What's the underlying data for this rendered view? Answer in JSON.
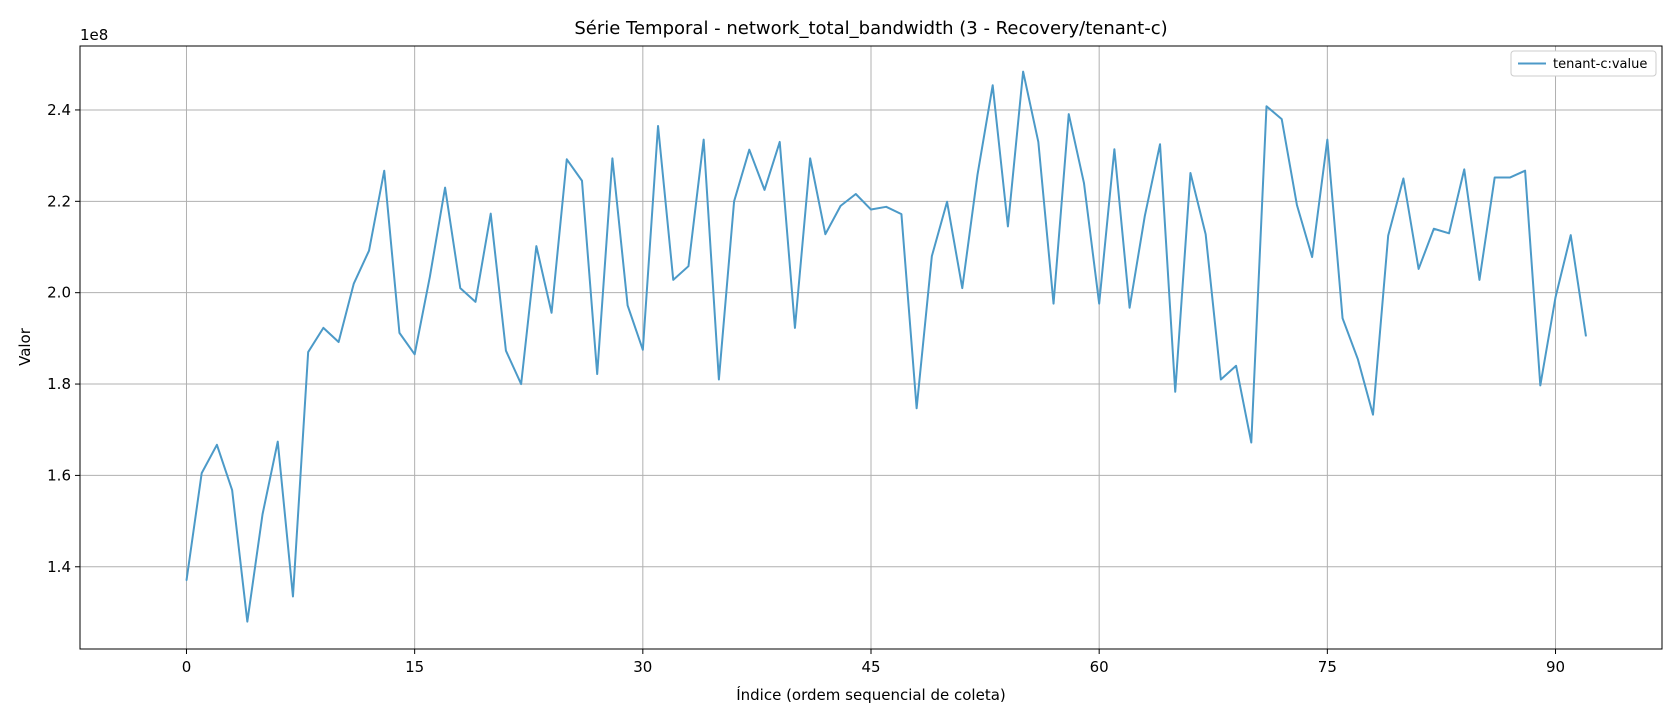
{
  "chart_data": {
    "type": "line",
    "title": "Série Temporal - network_total_bandwidth (3 - Recovery/tenant-c)",
    "xlabel": "Índice (ordem sequencial de coleta)",
    "ylabel": "Valor",
    "y_multiplier_label": "1e8",
    "xlim": [
      -7,
      97
    ],
    "ylim": [
      122000000,
      254000000
    ],
    "x_ticks": [
      0,
      15,
      30,
      45,
      60,
      75,
      90
    ],
    "x_tick_labels": [
      "0",
      "15",
      "30",
      "45",
      "60",
      "75",
      "90"
    ],
    "y_ticks": [
      140000000,
      160000000,
      180000000,
      200000000,
      220000000,
      240000000
    ],
    "y_tick_labels": [
      "1.4",
      "1.6",
      "1.8",
      "2.0",
      "2.2",
      "2.4"
    ],
    "grid": true,
    "legend_position": "top-right",
    "series": [
      {
        "name": "tenant-c:value",
        "color": "#4c9ac8",
        "x": [
          0,
          1,
          2,
          3,
          4,
          5,
          6,
          7,
          8,
          9,
          10,
          11,
          12,
          13,
          14,
          15,
          16,
          17,
          18,
          19,
          20,
          21,
          22,
          23,
          24,
          25,
          26,
          27,
          28,
          29,
          30,
          31,
          32,
          33,
          34,
          35,
          36,
          37,
          38,
          39,
          40,
          41,
          42,
          43,
          44,
          45,
          46,
          47,
          48,
          49,
          50,
          51,
          52,
          53,
          54,
          55,
          56,
          57,
          58,
          59,
          60,
          61,
          62,
          63,
          64,
          65,
          66,
          67,
          68,
          69,
          70,
          71,
          72,
          73,
          74,
          75,
          76,
          77,
          78,
          79,
          80,
          81,
          82,
          83,
          84,
          85,
          86,
          87,
          88,
          89,
          90,
          91,
          92
        ],
        "values": [
          137000000,
          160500000,
          166700000,
          156800000,
          128000000,
          151500000,
          167400000,
          133500000,
          187000000,
          192300000,
          189200000,
          202000000,
          209200000,
          226700000,
          191200000,
          186500000,
          203500000,
          223000000,
          201000000,
          198000000,
          217300000,
          187300000,
          180000000,
          210200000,
          195600000,
          229200000,
          224500000,
          182200000,
          229400000,
          197200000,
          187500000,
          236500000,
          202800000,
          205800000,
          233500000,
          181000000,
          220000000,
          231300000,
          222500000,
          233000000,
          192300000,
          229400000,
          212800000,
          219000000,
          221600000,
          218200000,
          218800000,
          217200000,
          174700000,
          208000000,
          219900000,
          201000000,
          225800000,
          245400000,
          214500000,
          248400000,
          233000000,
          197600000,
          239100000,
          224000000,
          197600000,
          231400000,
          196700000,
          216800000,
          232500000,
          178300000,
          226200000,
          212800000,
          181000000,
          184000000,
          167200000,
          240800000,
          238000000,
          219200000,
          207800000,
          233500000,
          194400000,
          185500000,
          173300000,
          212500000,
          225000000,
          205200000,
          214000000,
          213000000,
          227000000,
          202800000,
          225200000,
          225200000,
          226700000,
          179700000,
          199000000,
          212600000,
          190500000
        ]
      }
    ]
  }
}
